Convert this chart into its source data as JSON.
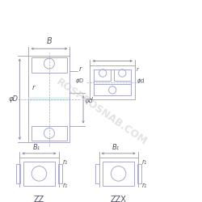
{
  "bg_color": "#ffffff",
  "line_color": "#aaaacc",
  "dark_line": "#888899",
  "text_color": "#555566",
  "watermark_color": "#cccccc",
  "watermark_text": "ROSPROSNAB.COM",
  "label_B": "B",
  "label_r": "r",
  "label_phiD": "φD",
  "label_r2": "r",
  "label_phid": "φd",
  "label_B1": "B₁",
  "label_r1a": "r₁",
  "label_r1b": "r₁",
  "label_ZZ": "ZZ",
  "label_ZZX": "ZZX"
}
